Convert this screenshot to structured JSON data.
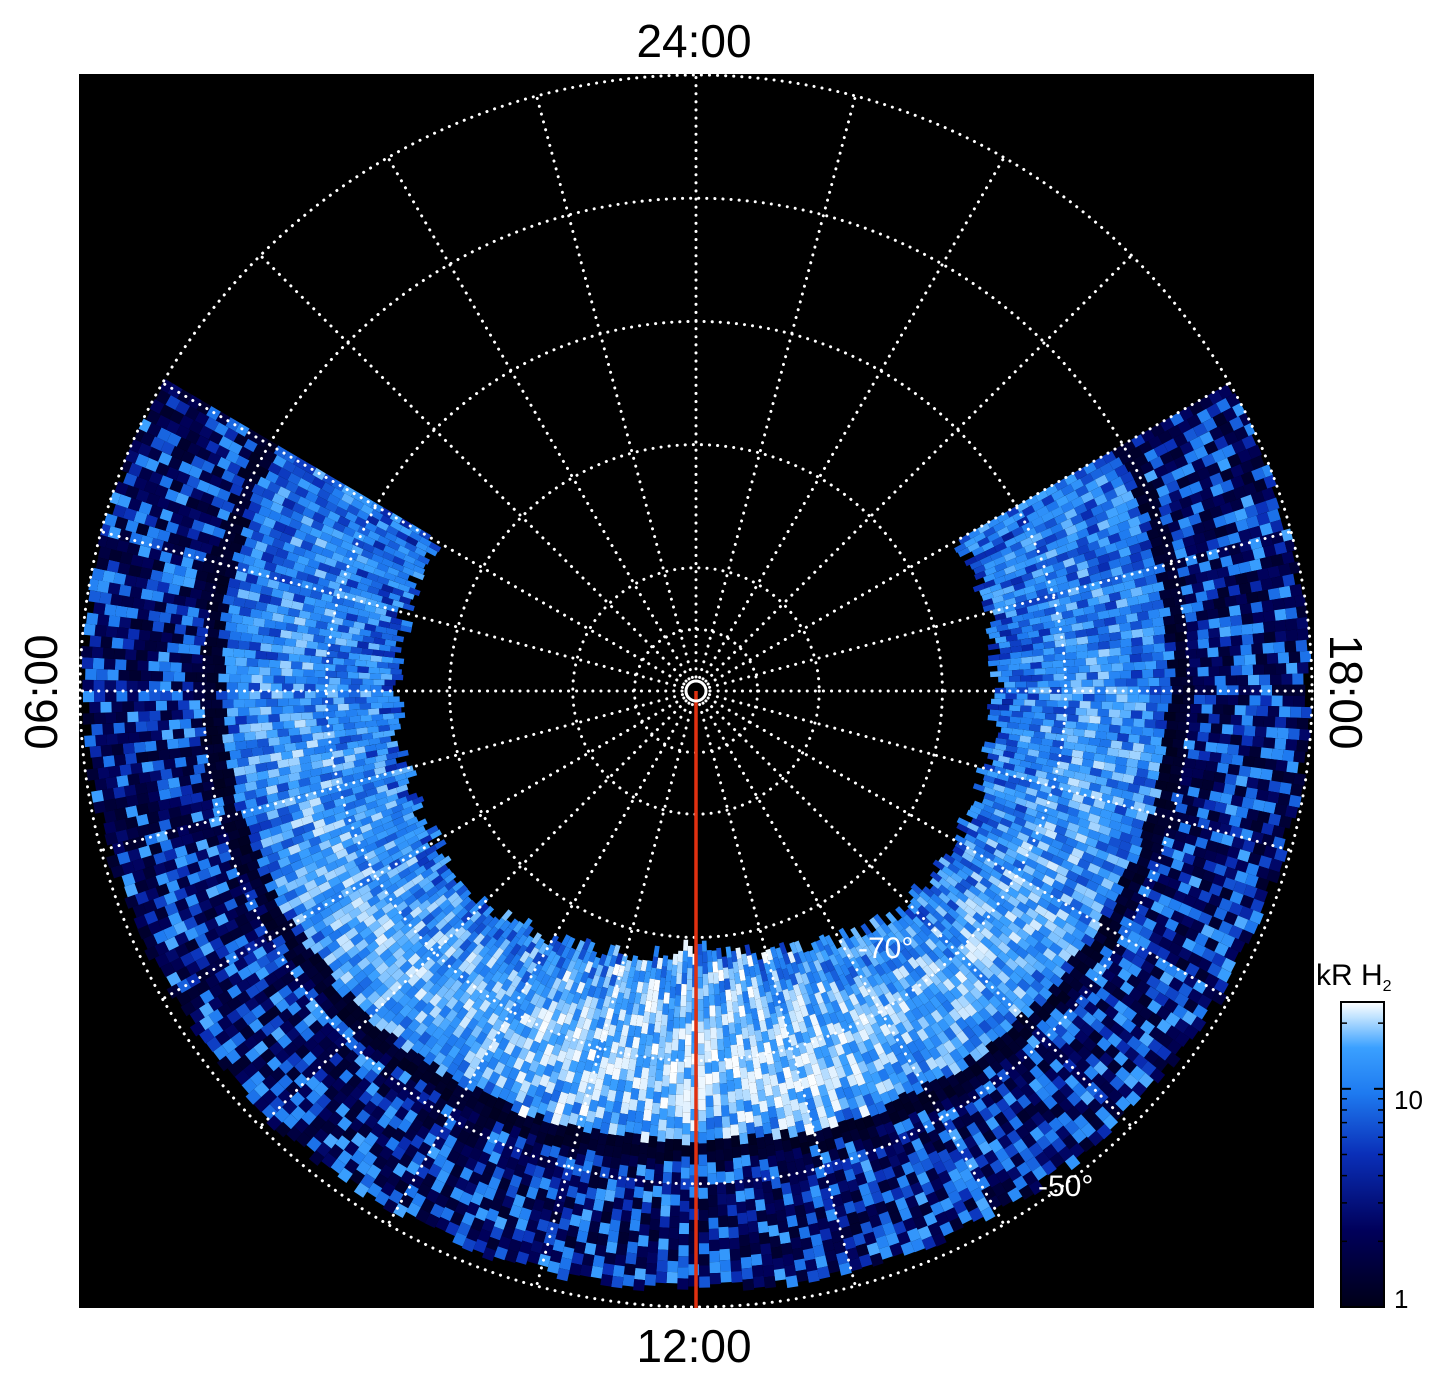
{
  "chart_data": {
    "type": "heatmap",
    "projection": "polar",
    "hemisphere": "south",
    "local_time_labels": {
      "top": "24:00",
      "left": "06:00",
      "right": "18:00",
      "bottom": "12:00"
    },
    "latitude_labels": [
      "-70°",
      "-50°"
    ],
    "latitude_rings_deg": [
      -85,
      -80,
      -70,
      -60,
      -50,
      -40
    ],
    "meridian_spacing_hours": 1,
    "reference_meridian_local_time": "12:00",
    "reference_line_color": "#e03010",
    "grid": true,
    "grid_style": "dotted white",
    "background_color": "#000000",
    "emission": {
      "main_band_colatitude_range_deg": [
        20,
        36
      ],
      "diffuse_colatitude_range_deg": [
        36,
        48
      ],
      "local_time_coverage": [
        "04:00",
        "20:00"
      ],
      "description_visible": "bright blue emission concentrated on the dayside"
    },
    "colorbar": {
      "label": "kR H",
      "label_subscript": "2",
      "scale": "log",
      "range": [
        1,
        25
      ],
      "tick_labels": [
        "10",
        "1"
      ],
      "tick_values": [
        10,
        1
      ],
      "colors": [
        "#000018",
        "#00005a",
        "#0a2fb8",
        "#1e7af0",
        "#3aa0ff",
        "#bfe2ff",
        "#ffffff"
      ]
    }
  }
}
